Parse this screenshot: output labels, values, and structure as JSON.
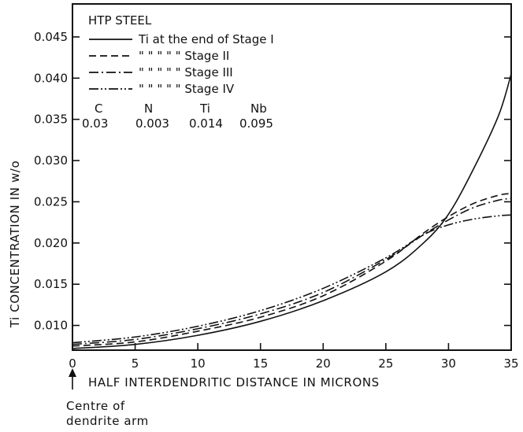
{
  "chart_data": {
    "type": "line",
    "title": "HTP STEEL",
    "xlabel": "HALF INTERDENDRITIC DISTANCE IN MICRONS",
    "ylabel": "Ti CONCENTRATION IN w/o",
    "xlim": [
      0,
      35
    ],
    "ylim": [
      0.007,
      0.049
    ],
    "x_ticks": [
      "0",
      "5",
      "10",
      "15",
      "20",
      "25",
      "30",
      "35"
    ],
    "y_ticks": [
      "0.010",
      "0.015",
      "0.020",
      "0.025",
      "0.030",
      "0.035",
      "0.040",
      "0.045"
    ],
    "legend_position": "top-left",
    "legend": [
      {
        "text": "Ti at the end of Stage I",
        "style": "solid"
      },
      {
        "text": "\"  \"  \"   \"   \"  Stage II",
        "style": "dashed"
      },
      {
        "text": "\"  \"  \"   \"   \"  Stage III",
        "style": "dash-dot"
      },
      {
        "text": "\"  \"  \"   \"   \"  Stage IV",
        "style": "dash-dot-dot"
      }
    ],
    "composition": {
      "headers": [
        "C",
        "N",
        "Ti",
        "Nb"
      ],
      "values": [
        "0.03",
        "0.003",
        "0.014",
        "0.095"
      ]
    },
    "annotation": {
      "line1": "Centre of",
      "line2": "dendrite arm"
    },
    "series": [
      {
        "name": "Ti at the end of Stage I",
        "style": "solid",
        "x": [
          0,
          5,
          10,
          15,
          20,
          25,
          28,
          30,
          32,
          34,
          35
        ],
        "y": [
          0.0072,
          0.0077,
          0.0088,
          0.0105,
          0.013,
          0.0165,
          0.02,
          0.0235,
          0.029,
          0.0355,
          0.0405
        ]
      },
      {
        "name": "Stage II",
        "style": "dashed",
        "x": [
          0,
          5,
          10,
          15,
          20,
          25,
          28,
          30,
          32,
          34,
          35
        ],
        "y": [
          0.0075,
          0.008,
          0.0093,
          0.011,
          0.0136,
          0.0178,
          0.0212,
          0.0232,
          0.0248,
          0.0258,
          0.026
        ]
      },
      {
        "name": "Stage III",
        "style": "dash-dot",
        "x": [
          0,
          5,
          10,
          15,
          20,
          25,
          28,
          30,
          32,
          34,
          35
        ],
        "y": [
          0.0077,
          0.0083,
          0.0096,
          0.0114,
          0.014,
          0.018,
          0.021,
          0.0228,
          0.0243,
          0.0252,
          0.0254
        ]
      },
      {
        "name": "Stage IV",
        "style": "dash-dot-dot",
        "x": [
          0,
          5,
          10,
          15,
          20,
          25,
          28,
          30,
          32,
          34,
          35
        ],
        "y": [
          0.0079,
          0.0086,
          0.0099,
          0.0118,
          0.0145,
          0.0182,
          0.021,
          0.0222,
          0.0229,
          0.0233,
          0.0234
        ]
      }
    ]
  }
}
